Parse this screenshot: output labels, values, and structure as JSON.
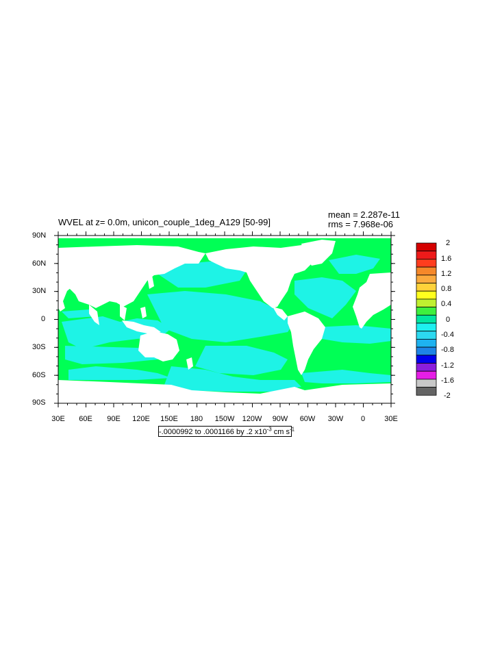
{
  "title": "WVEL at z=   0.0m, unicon_couple_1deg_A129 [50-99]",
  "stats": {
    "mean": "mean = 2.287e-11",
    "rms": "rms = 7.968e-06"
  },
  "range_label": {
    "prefix": "-.0000992 to .0001166 by .2 x10",
    "exponent": "-3",
    "unit": " cm s",
    "unit_exponent": "-1"
  },
  "axes": {
    "lat_labels": [
      "90N",
      "60N",
      "30N",
      "0",
      "30S",
      "60S",
      "90S"
    ],
    "lon_labels": [
      "30E",
      "60E",
      "90E",
      "120E",
      "150E",
      "180",
      "150W",
      "120W",
      "90W",
      "60W",
      "30W",
      "0",
      "30E"
    ]
  },
  "colorbar": {
    "labels": [
      "2",
      "1.6",
      "1.2",
      "0.8",
      "0.4",
      "0",
      "-0.4",
      "-0.8",
      "-1.2",
      "-1.6",
      "-2"
    ],
    "colors": [
      "#d40000",
      "#ee1a1a",
      "#ff3d1e",
      "#f5882a",
      "#fbaa3e",
      "#ffd23a",
      "#ffff1e",
      "#c0f030",
      "#3ef03e",
      "#00e6a0",
      "#1ef0f0",
      "#2cd9f0",
      "#1eb2f0",
      "#1e84e6",
      "#0000ee",
      "#8c1edc",
      "#e61ee6",
      "#c8c8c8",
      "#646464"
    ]
  },
  "field_colors": {
    "positive": "#00ff55",
    "negative": "#1ef3e6",
    "land": "#ffffff"
  }
}
